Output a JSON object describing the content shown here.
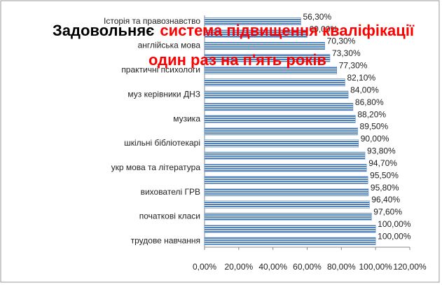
{
  "chart_data": {
    "type": "bar",
    "orientation": "horizontal",
    "title": [
      "Задовольняє",
      "система підвищення кваліфікації",
      "один раз на п'ять років"
    ],
    "title_colors": [
      "#000000",
      "#ff0000",
      "#ff0000"
    ],
    "categories": [
      "Історія та правознавство",
      null,
      "англійська мова",
      null,
      "практичні психологи",
      null,
      "муз керівники ДНЗ",
      null,
      "музика",
      null,
      "шкільні бібліотекарі",
      null,
      "укр мова та література",
      null,
      "вихователі ГРВ",
      null,
      "початкові класи",
      null,
      "трудове навчання"
    ],
    "values": [
      56.3,
      60,
      70.3,
      73.3,
      77.3,
      82.1,
      84,
      86.8,
      88.2,
      89.5,
      90,
      93.8,
      94.7,
      95.5,
      95.8,
      96.4,
      97.6,
      100,
      100
    ],
    "value_labels": [
      "56,30%",
      "60,00%",
      "70,30%",
      "73,30%",
      "77,30%",
      "82,10%",
      "84,00%",
      "86,80%",
      "88,20%",
      "89,50%",
      "90,00%",
      "93,80%",
      "94,70%",
      "95,50%",
      "95,80%",
      "96,40%",
      "97,60%",
      "100,00%",
      "100,00%"
    ],
    "color": "#4f81bd",
    "xlim": [
      0,
      120
    ],
    "xticks": [
      {
        "value": 0,
        "label": "0,00%"
      },
      {
        "value": 20,
        "label": "20,00%"
      },
      {
        "value": 40,
        "label": "40,00%"
      },
      {
        "value": 60,
        "label": "60,00%"
      },
      {
        "value": 80,
        "label": "80,00%"
      },
      {
        "value": 100,
        "label": "100,00%"
      },
      {
        "value": 120,
        "label": "120,00%"
      }
    ]
  }
}
